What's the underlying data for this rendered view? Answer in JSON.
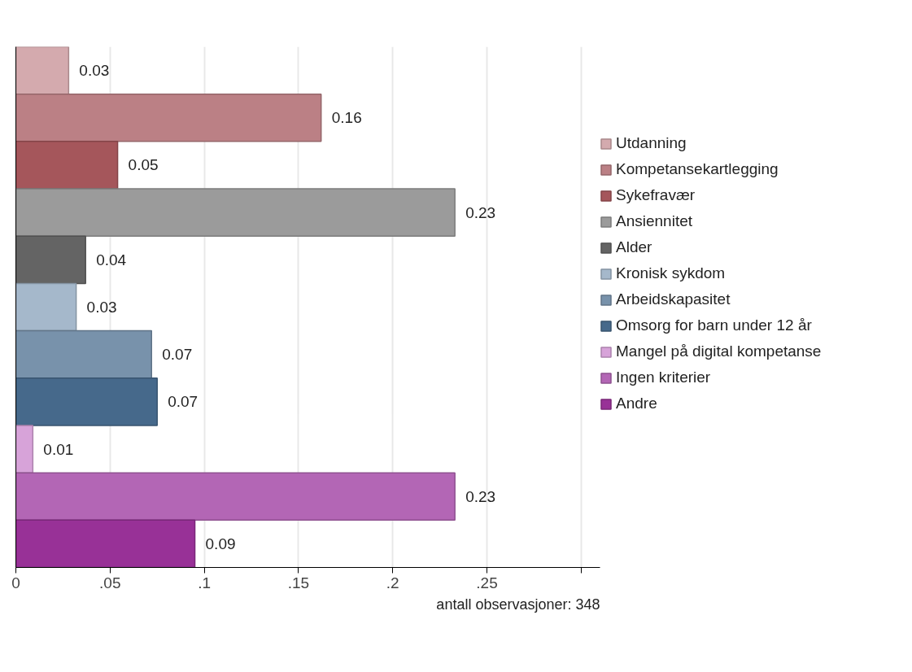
{
  "chart_data": {
    "type": "bar",
    "orientation": "horizontal",
    "categories": [
      null,
      null,
      null,
      null,
      null,
      null,
      null,
      null,
      null,
      null,
      null
    ],
    "series": [
      {
        "name": "Utdanning",
        "color": "#d4aaae",
        "values": [
          0.028,
          null,
          null,
          null,
          null,
          null,
          null,
          null,
          null,
          null,
          null
        ],
        "value_labels": [
          "0.03",
          null,
          null,
          null,
          null,
          null,
          null,
          null,
          null,
          null,
          null
        ]
      },
      {
        "name": "Kompetansekartlegging",
        "color": "#bb8085",
        "values": [
          null,
          0.162,
          null,
          null,
          null,
          null,
          null,
          null,
          null,
          null,
          null
        ],
        "value_labels": [
          null,
          "0.16",
          null,
          null,
          null,
          null,
          null,
          null,
          null,
          null,
          null
        ]
      },
      {
        "name": "Sykefravær",
        "color": "#a5565b",
        "values": [
          null,
          null,
          0.054,
          null,
          null,
          null,
          null,
          null,
          null,
          null,
          null
        ],
        "value_labels": [
          null,
          null,
          "0.05",
          null,
          null,
          null,
          null,
          null,
          null,
          null,
          null
        ]
      },
      {
        "name": "Ansiennitet",
        "color": "#9b9b9b",
        "values": [
          null,
          null,
          null,
          0.233,
          null,
          null,
          null,
          null,
          null,
          null,
          null
        ],
        "value_labels": [
          null,
          null,
          null,
          "0.23",
          null,
          null,
          null,
          null,
          null,
          null,
          null
        ]
      },
      {
        "name": "Alder",
        "color": "#646464",
        "values": [
          null,
          null,
          null,
          null,
          0.037,
          null,
          null,
          null,
          null,
          null,
          null
        ],
        "value_labels": [
          null,
          null,
          null,
          null,
          "0.04",
          null,
          null,
          null,
          null,
          null,
          null
        ]
      },
      {
        "name": "Kronisk sykdom",
        "color": "#a5b8cb",
        "values": [
          null,
          null,
          null,
          null,
          null,
          0.032,
          null,
          null,
          null,
          null,
          null
        ],
        "value_labels": [
          null,
          null,
          null,
          null,
          null,
          "0.03",
          null,
          null,
          null,
          null,
          null
        ]
      },
      {
        "name": "Arbeidskapasitet",
        "color": "#7892ab",
        "values": [
          null,
          null,
          null,
          null,
          null,
          null,
          0.072,
          null,
          null,
          null,
          null
        ],
        "value_labels": [
          null,
          null,
          null,
          null,
          null,
          null,
          "0.07",
          null,
          null,
          null,
          null
        ]
      },
      {
        "name": "Omsorg for barn under 12 år",
        "color": "#46698b",
        "values": [
          null,
          null,
          null,
          null,
          null,
          null,
          null,
          0.075,
          null,
          null,
          null
        ],
        "value_labels": [
          null,
          null,
          null,
          null,
          null,
          null,
          null,
          "0.07",
          null,
          null,
          null
        ]
      },
      {
        "name": "Mangel på digital kompetanse",
        "color": "#d7a3d9",
        "values": [
          null,
          null,
          null,
          null,
          null,
          null,
          null,
          null,
          0.009,
          null,
          null
        ],
        "value_labels": [
          null,
          null,
          null,
          null,
          null,
          null,
          null,
          null,
          "0.01",
          null,
          null
        ]
      },
      {
        "name": "Ingen kriterier",
        "color": "#b366b5",
        "values": [
          null,
          null,
          null,
          null,
          null,
          null,
          null,
          null,
          null,
          0.233,
          null
        ],
        "value_labels": [
          null,
          null,
          null,
          null,
          null,
          null,
          null,
          null,
          null,
          "0.23",
          null
        ]
      },
      {
        "name": "Andre",
        "color": "#983197",
        "values": [
          null,
          null,
          null,
          null,
          null,
          null,
          null,
          null,
          null,
          null,
          0.095
        ],
        "value_labels": [
          null,
          null,
          null,
          null,
          null,
          null,
          null,
          null,
          null,
          null,
          "0.09"
        ]
      }
    ],
    "xlim": [
      0,
      0.31
    ],
    "xticks": [
      0,
      {
        "value": 0.05,
        "label": ".05"
      },
      {
        "value": 0.1,
        "label": ".1"
      },
      {
        "value": 0.15,
        "label": ".15"
      },
      {
        "value": 0.2,
        "label": ".2"
      },
      {
        "value": 0.25,
        "label": ".25"
      },
      {
        "value": 0.3,
        "label": null
      }
    ],
    "grid": "x",
    "legend": "right",
    "tick_labels": "x",
    "annotations": [
      "antall observasjoner: 348"
    ]
  }
}
